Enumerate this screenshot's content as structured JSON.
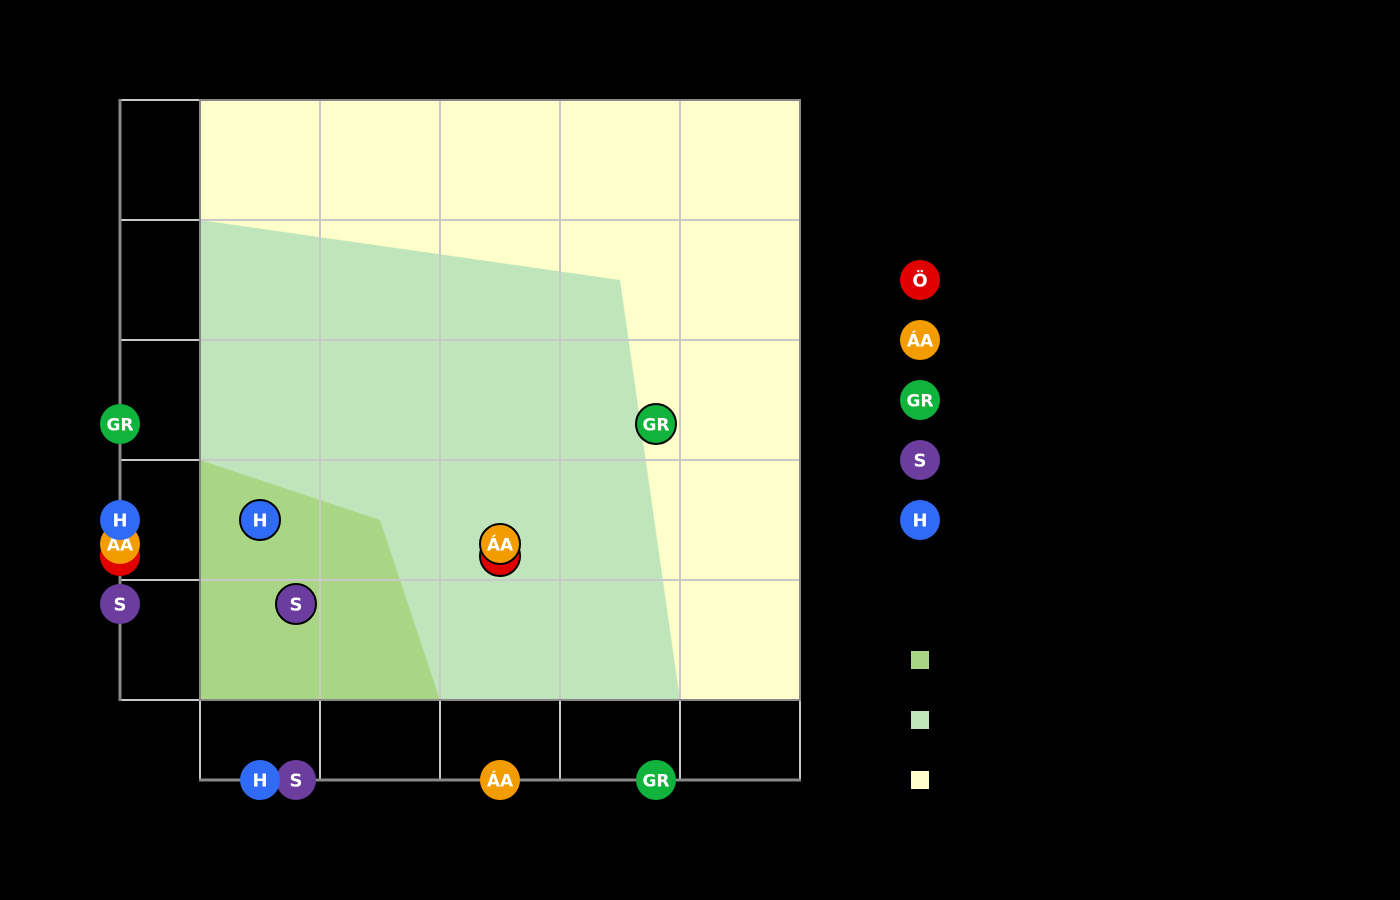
{
  "chart_data": {
    "type": "scatter",
    "title": "",
    "xlabel": "",
    "ylabel": "",
    "xlim": [
      0,
      5
    ],
    "ylim": [
      0,
      5
    ],
    "grid": true,
    "x_ticks": [
      0,
      1,
      2,
      3,
      4,
      5
    ],
    "y_ticks": [
      0,
      1,
      2,
      3,
      4,
      5
    ],
    "tick_labels_visible": false,
    "legend_position": "right",
    "background_region": {
      "name": "zone-3",
      "color": "#ffffcc"
    },
    "regions": [
      {
        "name": "zone-2",
        "color": "#c0e4bb",
        "polygon": [
          [
            0,
            4
          ],
          [
            3.5,
            3.5
          ],
          [
            4,
            0
          ],
          [
            0,
            0
          ]
        ]
      },
      {
        "name": "zone-1",
        "color": "#a9d685",
        "polygon": [
          [
            0,
            2
          ],
          [
            1.5,
            1.5
          ],
          [
            2,
            0
          ],
          [
            0,
            0
          ]
        ]
      }
    ],
    "series": [
      {
        "name": "Ö",
        "label": "Ö",
        "color": "#e00000",
        "x": 2.5,
        "y": 1.2
      },
      {
        "name": "ÁA",
        "label": "ÁA",
        "color": "#f39c00",
        "x": 2.5,
        "y": 1.3
      },
      {
        "name": "GR",
        "label": "GR",
        "color": "#10b33c",
        "x": 3.8,
        "y": 2.3
      },
      {
        "name": "S",
        "label": "S",
        "color": "#6b3d9e",
        "x": 0.8,
        "y": 0.8
      },
      {
        "name": "H",
        "label": "H",
        "color": "#2f6bf5",
        "x": 0.5,
        "y": 1.5
      }
    ],
    "marginal_markers": {
      "y_axis": [
        "GR",
        "H",
        "ÁA",
        "Ö",
        "S"
      ],
      "x_axis": [
        "H",
        "S",
        "ÁA",
        "GR"
      ]
    }
  },
  "legend": {
    "markers": [
      {
        "label": "Ö",
        "color": "#e00000",
        "text": ""
      },
      {
        "label": "ÁA",
        "color": "#f39c00",
        "text": ""
      },
      {
        "label": "GR",
        "color": "#10b33c",
        "text": ""
      },
      {
        "label": "S",
        "color": "#6b3d9e",
        "text": ""
      },
      {
        "label": "H",
        "color": "#2f6bf5",
        "text": ""
      }
    ],
    "areas": [
      {
        "color": "#a9d685",
        "text": ""
      },
      {
        "color": "#c0e4bb",
        "text": ""
      },
      {
        "color": "#ffffcc",
        "text": ""
      }
    ]
  },
  "colors": {
    "page_background": "#000000",
    "grid": "#c8c8c8",
    "axis": "#888888",
    "marker_border": "#000000",
    "marker_text": "#ffffff"
  }
}
